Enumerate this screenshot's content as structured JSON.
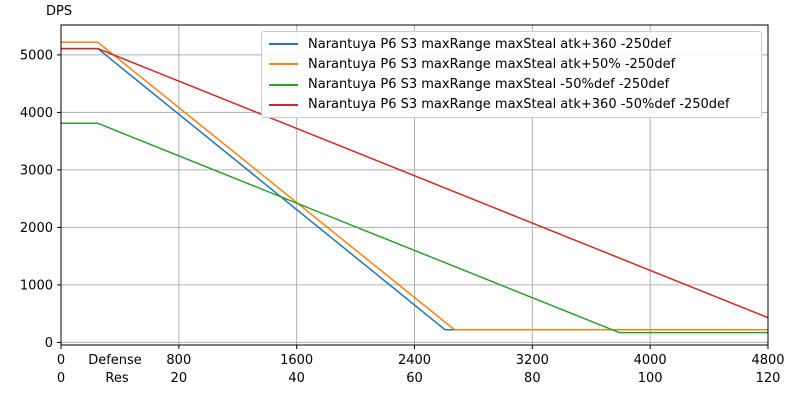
{
  "chart_data": {
    "type": "line",
    "title": "",
    "ylabel": "DPS",
    "x_axis_row1_label": "Defense",
    "x_axis_row2_label": "Res",
    "xlim": [
      0,
      4800
    ],
    "ylim": [
      -45,
      5520
    ],
    "grid": true,
    "legend_position": "upper right",
    "x_ticks_defense": [
      0,
      800,
      1600,
      2400,
      3200,
      4000,
      4800
    ],
    "x_ticks_res": [
      0,
      20,
      40,
      60,
      80,
      100,
      120
    ],
    "y_ticks": [
      0,
      1000,
      2000,
      3000,
      4000,
      5000
    ],
    "grid_color": "#b0b0b0",
    "series": [
      {
        "name": "Narantuya P6 S3 maxRange maxSteal atk+360 -250def",
        "color": "#1f77b4",
        "points": [
          [
            0,
            5110
          ],
          [
            250,
            5110
          ],
          [
            2608,
            220
          ],
          [
            4800,
            220
          ]
        ]
      },
      {
        "name": "Narantuya P6 S3 maxRange maxSteal atk+50% -250def",
        "color": "#ff7f0e",
        "points": [
          [
            0,
            5220
          ],
          [
            250,
            5220
          ],
          [
            2672,
            220
          ],
          [
            4800,
            220
          ]
        ]
      },
      {
        "name": "Narantuya P6 S3 maxRange maxSteal -50%def -250def",
        "color": "#2ca02c",
        "points": [
          [
            0,
            3810
          ],
          [
            250,
            3810
          ],
          [
            3790,
            170
          ],
          [
            4800,
            170
          ]
        ]
      },
      {
        "name": "Narantuya P6 S3 maxRange maxSteal atk+360 -50%def -250def",
        "color": "#d62728",
        "points": [
          [
            0,
            5110
          ],
          [
            250,
            5110
          ],
          [
            4800,
            430
          ]
        ]
      }
    ]
  }
}
